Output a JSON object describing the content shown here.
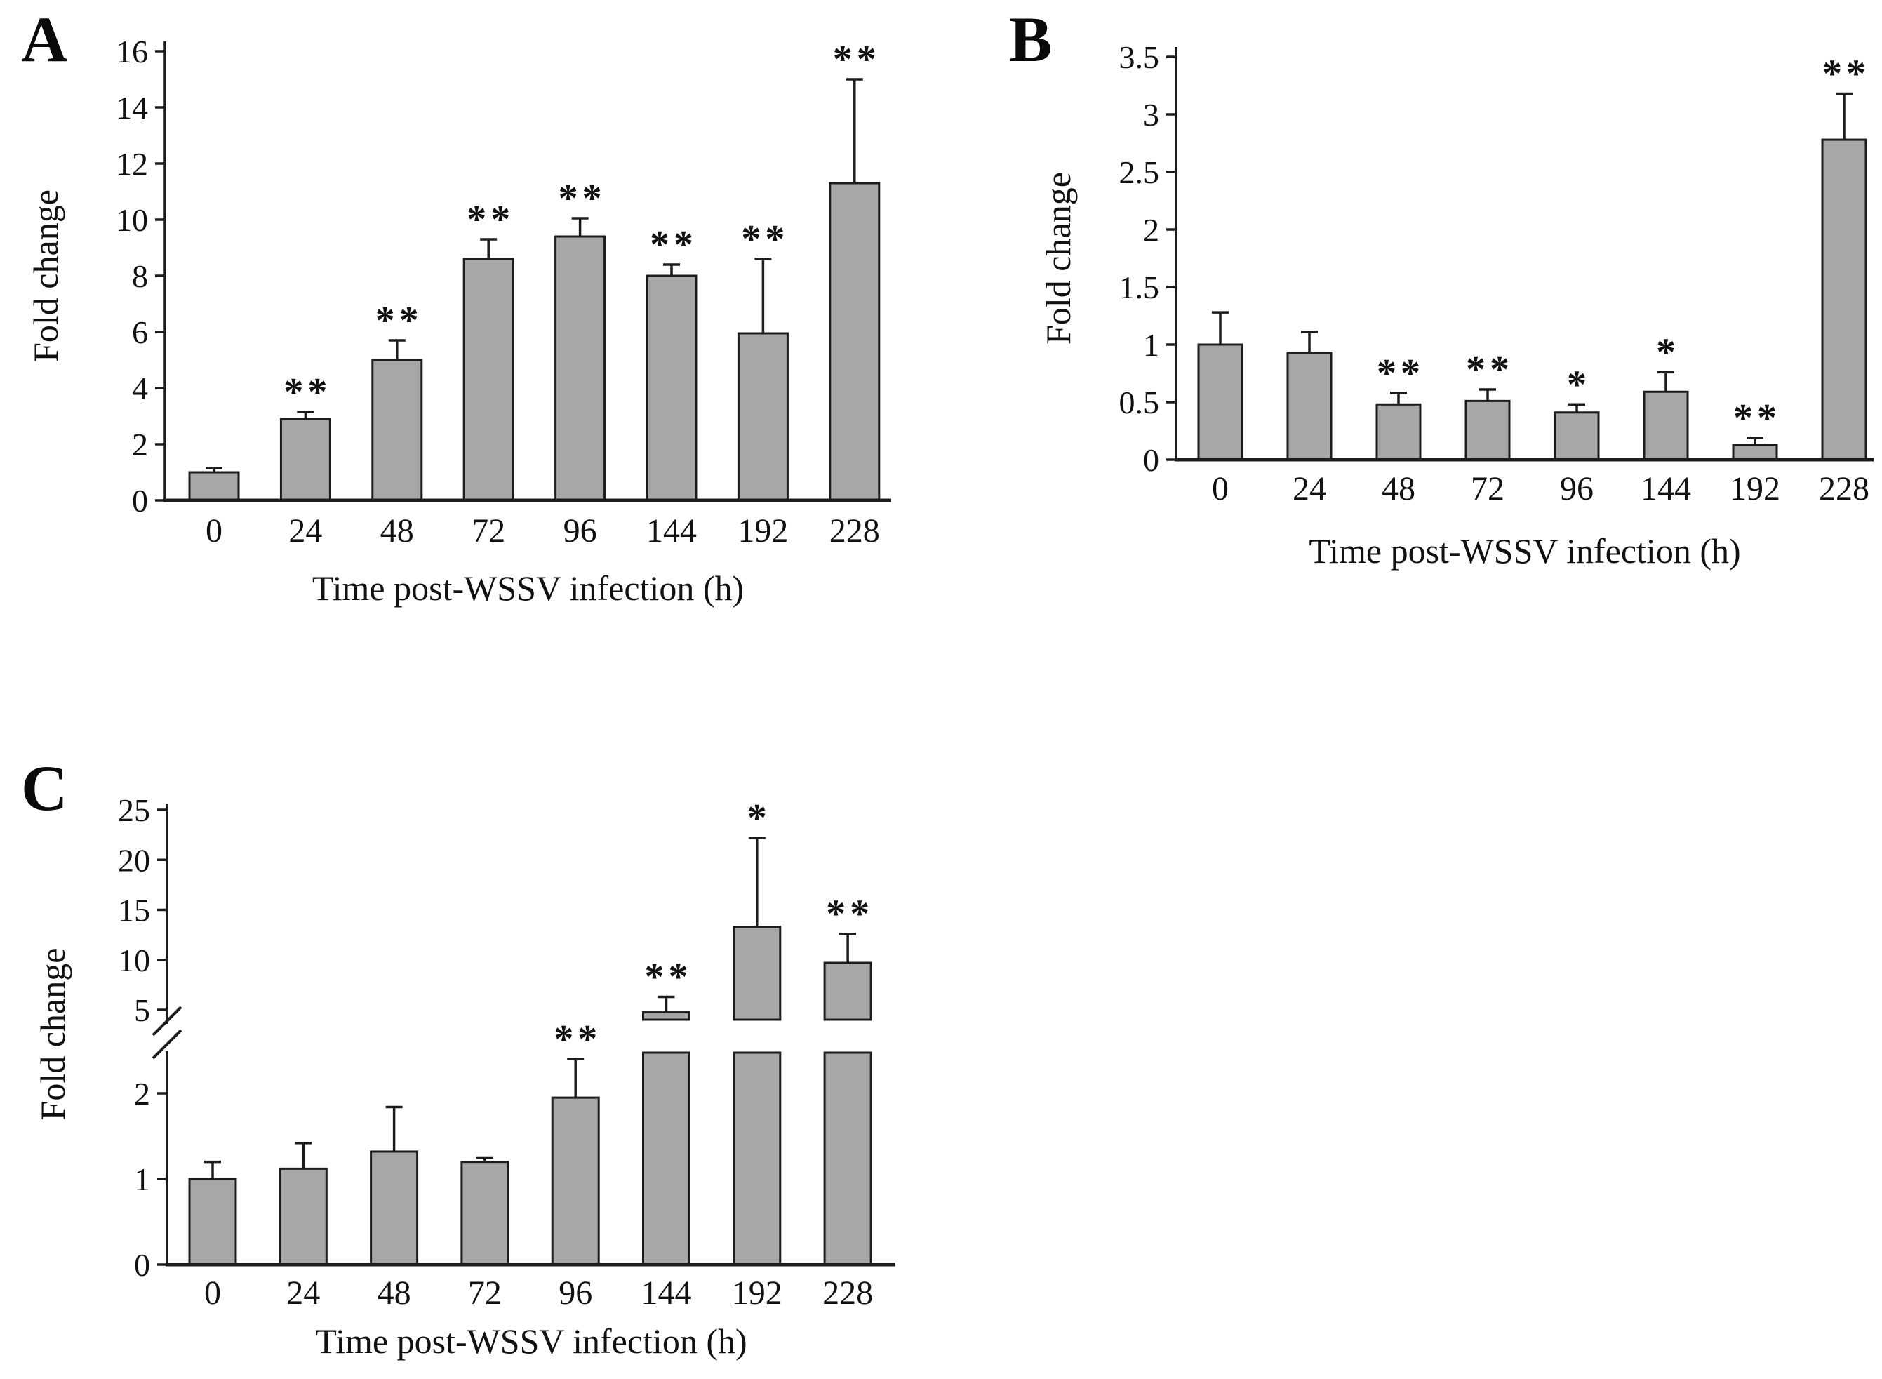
{
  "figure": {
    "colors": {
      "bar_fill": "#a7a7a7",
      "bar_stroke": "#1c1c1c",
      "axis_color": "#1c1c1c",
      "text_color": "#111111",
      "background": "#ffffff"
    },
    "significance_legend": {
      "single": "*",
      "double": "**"
    }
  },
  "chart_data": [
    {
      "panel": "A",
      "type": "bar",
      "title": "",
      "xlabel": "Time post-WSSV infection (h)",
      "ylabel": "Fold change",
      "categories": [
        "0",
        "24",
        "48",
        "72",
        "96",
        "144",
        "192",
        "228"
      ],
      "values": [
        1.0,
        2.9,
        5.0,
        8.6,
        9.4,
        8.0,
        5.95,
        11.3
      ],
      "errors_plus": [
        0.15,
        0.25,
        0.7,
        0.7,
        0.65,
        0.4,
        2.65,
        3.7
      ],
      "significance": [
        "",
        "**",
        "**",
        "**",
        "**",
        "**",
        "**",
        "**"
      ],
      "ylim": [
        0,
        16
      ],
      "yticks": [
        0,
        2,
        4,
        6,
        8,
        10,
        12,
        14,
        16
      ],
      "grid": false,
      "legend": "none"
    },
    {
      "panel": "B",
      "type": "bar",
      "title": "",
      "xlabel": "Time post-WSSV infection (h)",
      "ylabel": "Fold change",
      "categories": [
        "0",
        "24",
        "48",
        "72",
        "96",
        "144",
        "192",
        "228"
      ],
      "values": [
        1.0,
        0.93,
        0.48,
        0.51,
        0.41,
        0.59,
        0.13,
        2.78
      ],
      "errors_plus": [
        0.28,
        0.18,
        0.1,
        0.1,
        0.07,
        0.17,
        0.06,
        0.4
      ],
      "significance": [
        "",
        "",
        "**",
        "**",
        "*",
        "*",
        "**",
        "**"
      ],
      "ylim": [
        0,
        3.5
      ],
      "yticks": [
        0,
        0.5,
        1,
        1.5,
        2,
        2.5,
        3,
        3.5
      ],
      "grid": false,
      "legend": "none"
    },
    {
      "panel": "C",
      "type": "bar",
      "title": "",
      "xlabel": "Time post-WSSV infection (h)",
      "ylabel": "Fold change",
      "categories": [
        "0",
        "24",
        "48",
        "72",
        "96",
        "144",
        "192",
        "228"
      ],
      "values": [
        1.0,
        1.12,
        1.32,
        1.2,
        1.95,
        4.75,
        13.3,
        9.7
      ],
      "errors_plus": [
        0.2,
        0.3,
        0.52,
        0.05,
        0.45,
        1.55,
        8.9,
        2.9
      ],
      "significance": [
        "",
        "",
        "",
        "",
        "**",
        "**",
        "*",
        "**"
      ],
      "ylim": [
        0,
        25
      ],
      "axis_break": {
        "lower_ticks": [
          0,
          1,
          2
        ],
        "upper_ticks": [
          5,
          10,
          15,
          20,
          25
        ],
        "break_between": [
          2.55,
          3.9
        ]
      },
      "grid": false,
      "legend": "none"
    }
  ]
}
